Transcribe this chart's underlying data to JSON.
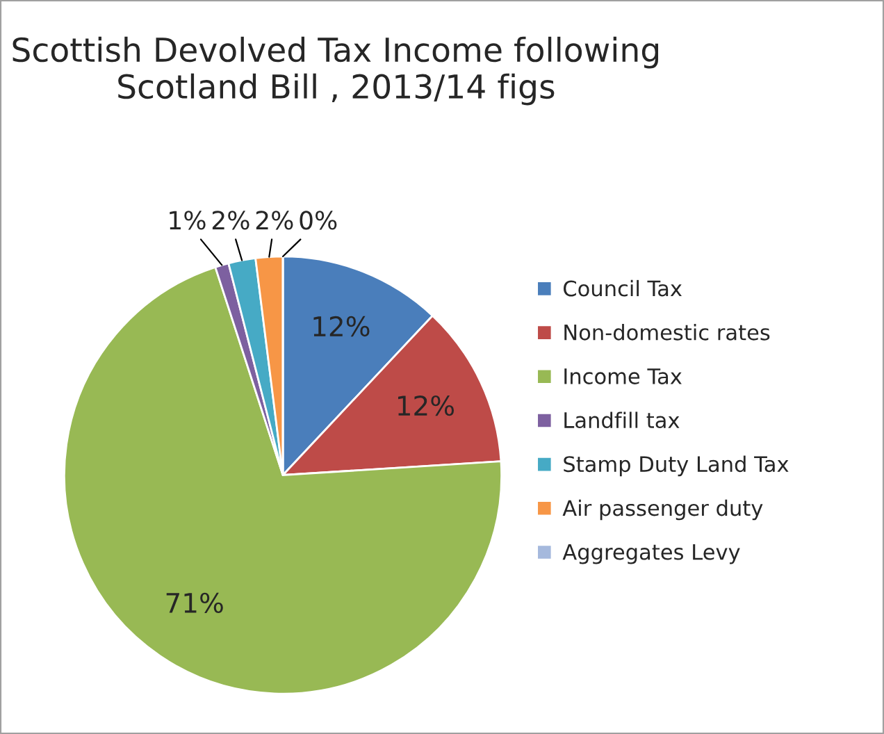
{
  "chart_data": {
    "type": "pie",
    "title": "Scottish Devolved Tax Income following\nScotland Bill , 2013/14 figs",
    "categories": [
      "Council Tax",
      "Non-domestic rates",
      "Income Tax",
      "Landfill tax",
      "Stamp Duty Land Tax",
      "Air passenger duty",
      "Aggregates Levy"
    ],
    "values": [
      12,
      12,
      71,
      1,
      2,
      2,
      0
    ],
    "colors": [
      "#4a7ebb",
      "#be4b48",
      "#98b954",
      "#7d60a0",
      "#46aac5",
      "#f79646",
      "#a5b9dd"
    ],
    "value_labels": [
      "12%",
      "12%",
      "71%",
      "1%",
      "2%",
      "2%",
      "0%"
    ],
    "legend": "right"
  }
}
